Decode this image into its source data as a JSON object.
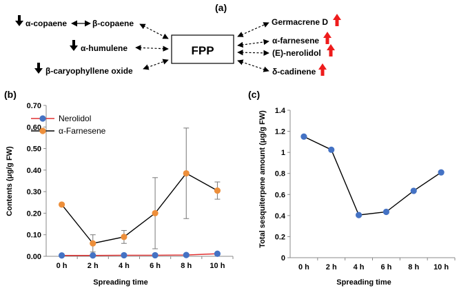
{
  "panel_labels": [
    "(a)",
    "(b)",
    "(c)"
  ],
  "diagram": {
    "center": "FPP",
    "left_top_a": "α-copaene",
    "left_top_b": "β-copaene",
    "left_mid": "α-humulene",
    "left_bottom": "β-caryophyllene oxide",
    "right": [
      "Germacrene D",
      "α-farnesene",
      "(E)-nerolidol",
      "δ-cadinene"
    ],
    "down_color": "#000000",
    "up_color": "#ee1c1c"
  },
  "chart_data": [
    {
      "type": "line",
      "categories": [
        "0 h",
        "2 h",
        "4 h",
        "6 h",
        "8 h",
        "10 h"
      ],
      "xlabel": "Spreading time",
      "ylabel": "Contents (μg/g FW)",
      "ylim": [
        0,
        0.7
      ],
      "yticks": [
        "0.00",
        "0.10",
        "0.20",
        "0.30",
        "0.40",
        "0.50",
        "0.60",
        "0.70"
      ],
      "grid": false,
      "legend": "top-left",
      "series": [
        {
          "name": "Nerolidol",
          "values": [
            0.004,
            0.004,
            0.005,
            0.005,
            0.006,
            0.012
          ],
          "errors": [
            0,
            0,
            0,
            0,
            0,
            0
          ],
          "line_color": "#e03030",
          "marker_color": "#4472c4"
        },
        {
          "name": "α-Farnesene",
          "values": [
            0.24,
            0.06,
            0.09,
            0.2,
            0.385,
            0.305
          ],
          "errors": [
            0,
            0.04,
            0.03,
            0.165,
            0.21,
            0.04
          ],
          "line_color": "#000000",
          "marker_color": "#ed8f3b"
        }
      ]
    },
    {
      "type": "line",
      "categories": [
        "0 h",
        "2 h",
        "4 h",
        "6 h",
        "8 h",
        "10 h"
      ],
      "xlabel": "Spreading time",
      "ylabel": "Total sesquiterpene amount (μg/g FW)",
      "ylim": [
        0,
        1.4
      ],
      "yticks": [
        "0",
        "0.2",
        "0.4",
        "0.6",
        "0.8",
        "1",
        "1.2",
        "1.4"
      ],
      "grid": false,
      "series": [
        {
          "values": [
            1.15,
            1.025,
            0.405,
            0.435,
            0.635,
            0.81
          ],
          "line_color": "#000000",
          "marker_color": "#4472c4"
        }
      ]
    }
  ]
}
